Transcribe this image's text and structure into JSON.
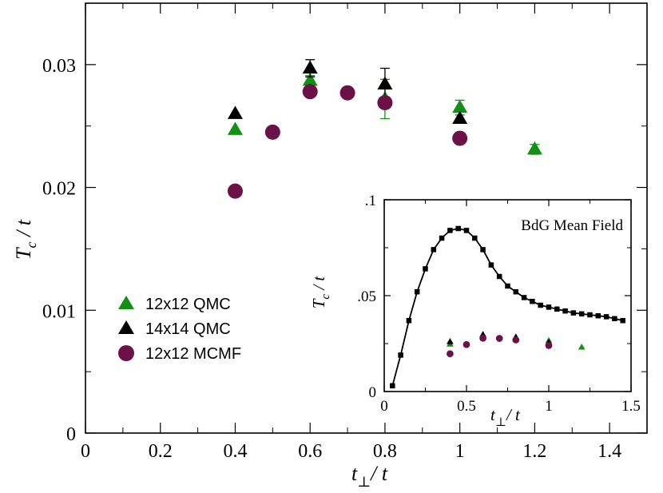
{
  "chart_data": [
    {
      "id": "main",
      "type": "scatter",
      "xlabel": "t_perp / t",
      "ylabel": "T_c / t",
      "xlim": [
        0,
        1.5
      ],
      "ylim": [
        0,
        0.035
      ],
      "xticks": [
        0,
        0.2,
        0.4,
        0.6,
        0.8,
        1.0,
        1.2,
        1.4
      ],
      "xtick_labels": [
        "0",
        "0.2",
        "0.4",
        "0.6",
        "0.8",
        "1",
        "1.2",
        "1.4"
      ],
      "yticks": [
        0,
        0.01,
        0.02,
        0.03
      ],
      "ytick_labels": [
        "0",
        "0.01",
        "0.02",
        "0.03"
      ],
      "legend_position": "center-left",
      "series": [
        {
          "name": "12x12 QMC",
          "marker": "triangle",
          "color": "#139013",
          "x": [
            0.4,
            0.6,
            0.8,
            1.0,
            1.2
          ],
          "y": [
            0.0247,
            0.0287,
            0.0272,
            0.0265,
            0.0231
          ],
          "err": [
            0,
            0.0004,
            0.0016,
            0.0006,
            0.0004
          ]
        },
        {
          "name": "14x14 QMC",
          "marker": "triangle",
          "color": "#000000",
          "x": [
            0.4,
            0.6,
            0.8,
            1.0
          ],
          "y": [
            0.026,
            0.0297,
            0.0284,
            0.0256
          ],
          "err": [
            0,
            0.0007,
            0.0013,
            0.0
          ]
        },
        {
          "name": "12x12 MCMF",
          "marker": "circle",
          "color": "#6b1147",
          "x": [
            0.4,
            0.5,
            0.6,
            0.7,
            0.8,
            1.0
          ],
          "y": [
            0.0197,
            0.0245,
            0.0278,
            0.0277,
            0.0269,
            0.024
          ],
          "err": [
            0,
            0,
            0,
            0,
            0,
            0
          ]
        }
      ]
    },
    {
      "id": "inset",
      "type": "line",
      "title": "BdG Mean Field",
      "xlabel": "t_perp / t",
      "ylabel": "T_c / t",
      "xlim": [
        0,
        1.5
      ],
      "ylim": [
        0,
        0.1
      ],
      "xticks": [
        0,
        0.5,
        1.0,
        1.5
      ],
      "xtick_labels": [
        "0",
        "0.5",
        "1",
        "1.5"
      ],
      "yticks": [
        0,
        0.05,
        0.1
      ],
      "ytick_labels": [
        "0",
        ".05",
        ".1"
      ],
      "series": [
        {
          "name": "BdG Mean Field",
          "marker": "square",
          "color": "#000000",
          "line": true,
          "x": [
            0.05,
            0.1,
            0.15,
            0.2,
            0.25,
            0.3,
            0.35,
            0.4,
            0.45,
            0.5,
            0.55,
            0.6,
            0.65,
            0.7,
            0.75,
            0.8,
            0.85,
            0.9,
            0.95,
            1.0,
            1.05,
            1.1,
            1.15,
            1.2,
            1.25,
            1.3,
            1.35,
            1.4,
            1.45
          ],
          "y": [
            0.003,
            0.019,
            0.037,
            0.052,
            0.064,
            0.074,
            0.08,
            0.084,
            0.085,
            0.084,
            0.08,
            0.074,
            0.066,
            0.06,
            0.055,
            0.052,
            0.049,
            0.047,
            0.045,
            0.044,
            0.043,
            0.042,
            0.041,
            0.0405,
            0.04,
            0.0395,
            0.039,
            0.038,
            0.037
          ]
        },
        {
          "name": "12x12 QMC",
          "marker": "triangle",
          "color": "#139013",
          "line": false,
          "x": [
            0.4,
            0.6,
            0.8,
            1.0,
            1.2
          ],
          "y": [
            0.0247,
            0.0287,
            0.0272,
            0.0265,
            0.0231
          ]
        },
        {
          "name": "14x14 QMC",
          "marker": "triangle",
          "color": "#000000",
          "line": false,
          "x": [
            0.4,
            0.6,
            0.8,
            1.0
          ],
          "y": [
            0.026,
            0.0297,
            0.0284,
            0.0256
          ]
        },
        {
          "name": "12x12 MCMF",
          "marker": "circle",
          "color": "#6b1147",
          "line": false,
          "x": [
            0.4,
            0.5,
            0.6,
            0.7,
            0.8,
            1.0
          ],
          "y": [
            0.0197,
            0.0245,
            0.0278,
            0.0277,
            0.0269,
            0.024
          ]
        }
      ]
    }
  ]
}
